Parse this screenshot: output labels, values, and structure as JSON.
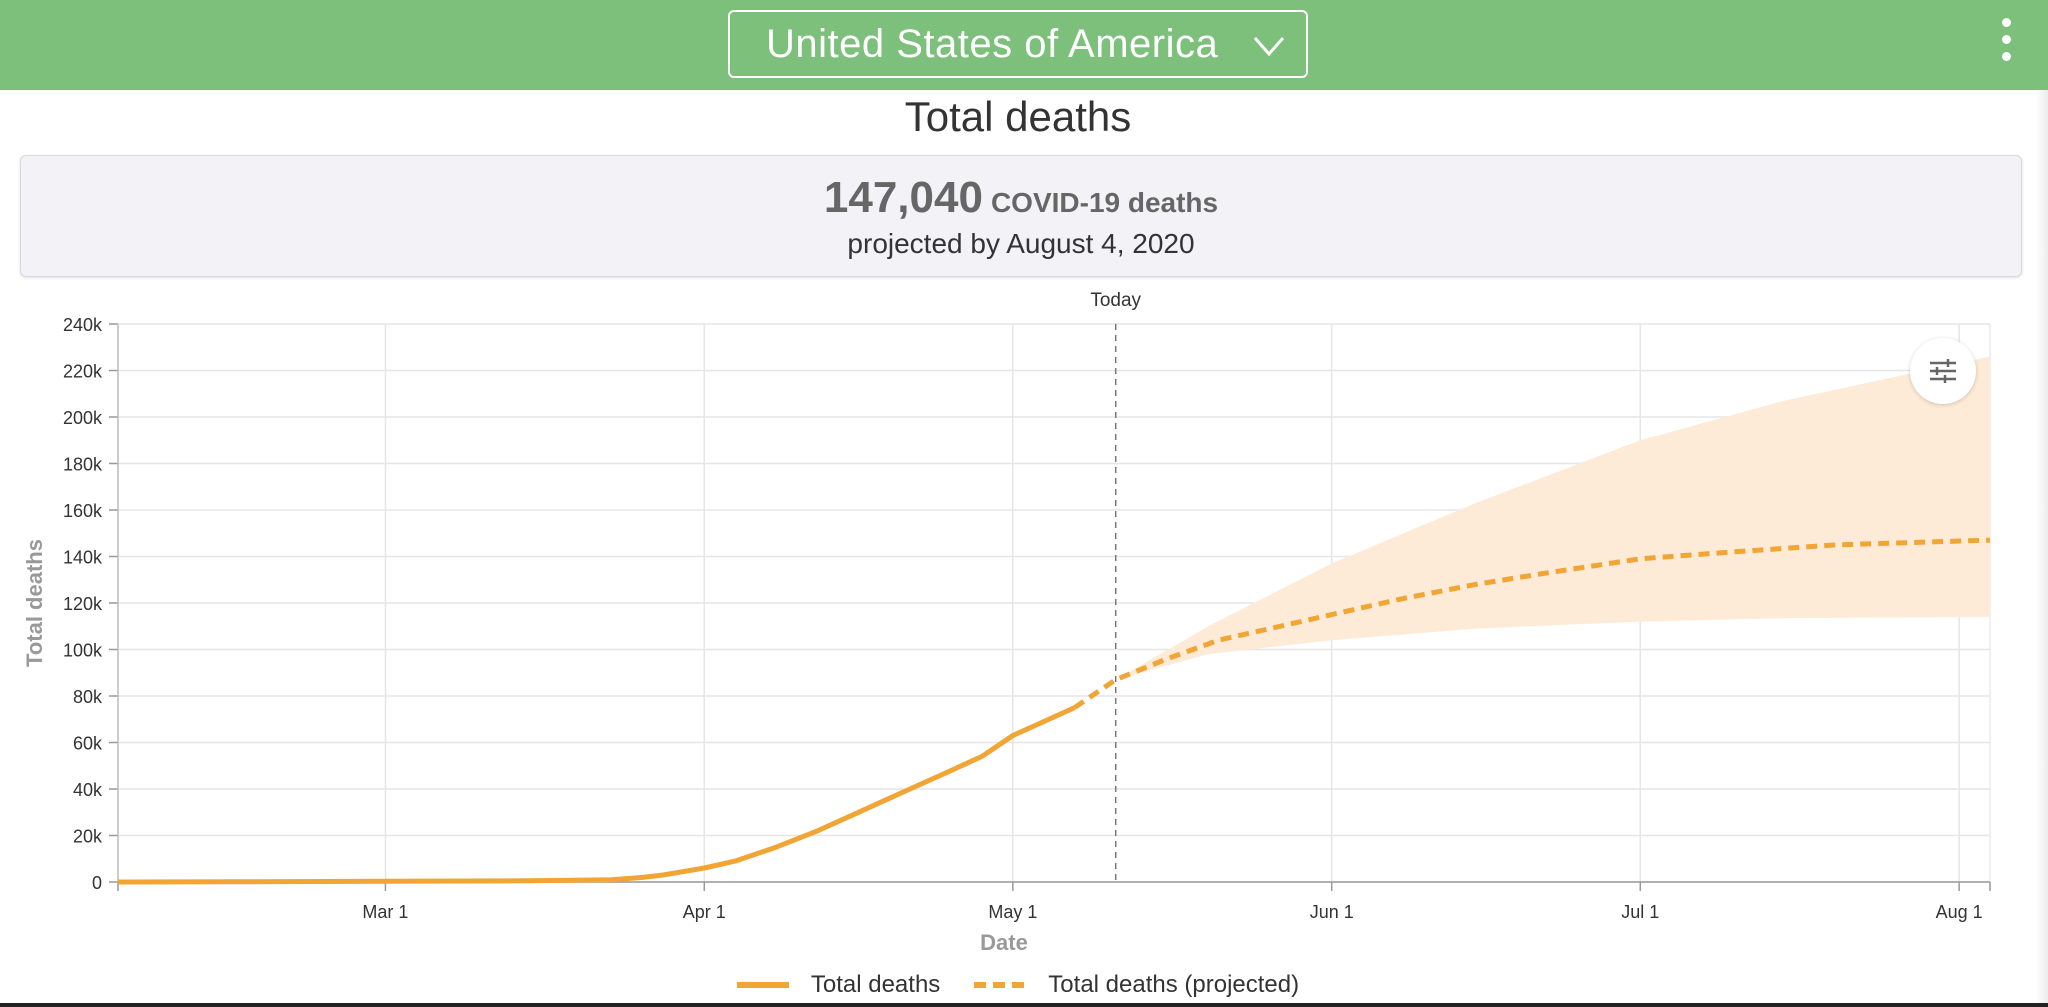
{
  "header": {
    "country": "United States of America",
    "chevron_icon": "chevron-down-icon",
    "menu_icon": "vertical-dots-icon",
    "background": "#7cc07c"
  },
  "page_title": "Total deaths",
  "summary": {
    "number": "147,040",
    "unit": "COVID-19 deaths",
    "subtitle": "projected by August 4, 2020"
  },
  "filter_icon": "sliders-icon",
  "legend": {
    "actual": "Total deaths",
    "projected": "Total deaths (projected)"
  },
  "chart_data": {
    "type": "line",
    "xlabel": "Date",
    "ylabel": "Total deaths",
    "x_ticks": [
      "Mar 1",
      "Apr 1",
      "May 1",
      "Jun 1",
      "Jul 1",
      "Aug 1"
    ],
    "y_ticks": [
      "0",
      "20k",
      "40k",
      "60k",
      "80k",
      "100k",
      "120k",
      "140k",
      "160k",
      "180k",
      "200k",
      "220k",
      "240k"
    ],
    "xlim": [
      "2020-02-04",
      "2020-08-04"
    ],
    "ylim": [
      0,
      240000
    ],
    "grid": true,
    "legend_position": "bottom",
    "color": "#f0a535",
    "band_color": "#fdebd7",
    "today": {
      "label": "Today",
      "date": "2020-05-11"
    },
    "series": [
      {
        "name": "Total deaths",
        "style": "solid",
        "points": [
          [
            "2020-02-04",
            0
          ],
          [
            "2020-02-15",
            100
          ],
          [
            "2020-03-01",
            300
          ],
          [
            "2020-03-15",
            500
          ],
          [
            "2020-03-23",
            1000
          ],
          [
            "2020-03-26",
            2000
          ],
          [
            "2020-03-28",
            3000
          ],
          [
            "2020-03-30",
            4500
          ],
          [
            "2020-04-01",
            6000
          ],
          [
            "2020-04-04",
            9000
          ],
          [
            "2020-04-08",
            15000
          ],
          [
            "2020-04-12",
            22000
          ],
          [
            "2020-04-16",
            30000
          ],
          [
            "2020-04-20",
            38000
          ],
          [
            "2020-04-24",
            46000
          ],
          [
            "2020-04-28",
            54000
          ],
          [
            "2020-05-01",
            63000
          ],
          [
            "2020-05-04",
            69000
          ],
          [
            "2020-05-07",
            75000
          ]
        ]
      },
      {
        "name": "Total deaths (projected)",
        "style": "dashed",
        "points": [
          [
            "2020-05-07",
            75000
          ],
          [
            "2020-05-11",
            87000
          ],
          [
            "2020-05-16",
            96000
          ],
          [
            "2020-05-21",
            104000
          ],
          [
            "2020-05-26",
            109000
          ],
          [
            "2020-06-01",
            115000
          ],
          [
            "2020-06-08",
            122000
          ],
          [
            "2020-06-15",
            128000
          ],
          [
            "2020-06-22",
            133000
          ],
          [
            "2020-07-01",
            139000
          ],
          [
            "2020-07-10",
            142000
          ],
          [
            "2020-07-20",
            145000
          ],
          [
            "2020-08-04",
            147040
          ]
        ]
      }
    ],
    "band": {
      "upper": [
        [
          "2020-05-11",
          87000
        ],
        [
          "2020-05-20",
          110000
        ],
        [
          "2020-06-01",
          137000
        ],
        [
          "2020-06-15",
          163000
        ],
        [
          "2020-07-01",
          190000
        ],
        [
          "2020-07-15",
          207000
        ],
        [
          "2020-08-04",
          226000
        ]
      ],
      "lower": [
        [
          "2020-05-11",
          87000
        ],
        [
          "2020-05-20",
          98000
        ],
        [
          "2020-06-01",
          104000
        ],
        [
          "2020-06-15",
          109000
        ],
        [
          "2020-07-01",
          112000
        ],
        [
          "2020-07-15",
          113500
        ],
        [
          "2020-08-04",
          114000
        ]
      ]
    }
  }
}
